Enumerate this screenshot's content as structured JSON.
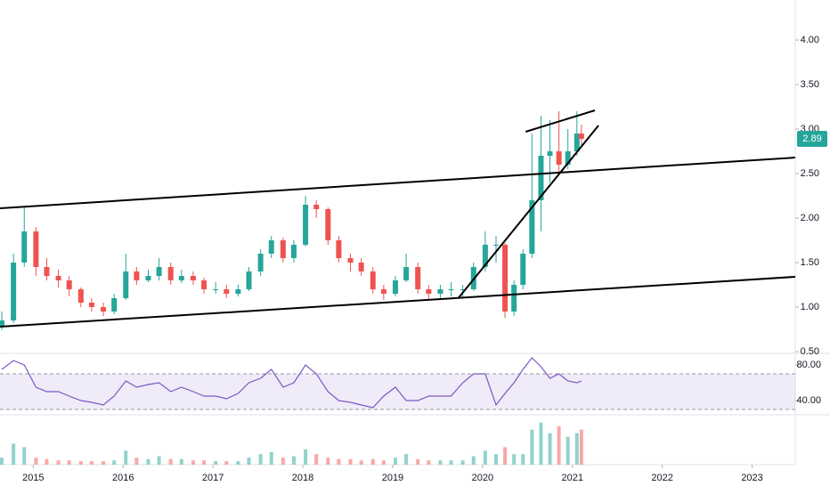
{
  "chart_data": {
    "type": "candlestick",
    "x": [
      2014.65,
      2014.78,
      2014.9,
      2015.03,
      2015.15,
      2015.28,
      2015.4,
      2015.53,
      2015.65,
      2015.78,
      2015.9,
      2016.03,
      2016.15,
      2016.28,
      2016.4,
      2016.53,
      2016.65,
      2016.78,
      2016.9,
      2017.03,
      2017.15,
      2017.28,
      2017.4,
      2017.53,
      2017.65,
      2017.78,
      2017.9,
      2018.03,
      2018.15,
      2018.28,
      2018.4,
      2018.53,
      2018.65,
      2018.78,
      2018.9,
      2019.03,
      2019.15,
      2019.28,
      2019.4,
      2019.53,
      2019.65,
      2019.78,
      2019.9,
      2020.03,
      2020.15,
      2020.25,
      2020.35,
      2020.45,
      2020.55,
      2020.65,
      2020.75,
      2020.85,
      2020.95,
      2021.05,
      2021.1
    ],
    "ohlc": [
      [
        0.78,
        0.95,
        0.74,
        0.85
      ],
      [
        0.85,
        1.6,
        0.82,
        1.5
      ],
      [
        1.5,
        2.12,
        1.45,
        1.85
      ],
      [
        1.85,
        1.9,
        1.35,
        1.45
      ],
      [
        1.45,
        1.55,
        1.3,
        1.35
      ],
      [
        1.35,
        1.42,
        1.22,
        1.3
      ],
      [
        1.3,
        1.35,
        1.12,
        1.2
      ],
      [
        1.2,
        1.22,
        1.0,
        1.05
      ],
      [
        1.05,
        1.1,
        0.95,
        1.0
      ],
      [
        1.0,
        1.05,
        0.9,
        0.95
      ],
      [
        0.95,
        1.15,
        0.92,
        1.1
      ],
      [
        1.1,
        1.6,
        1.08,
        1.4
      ],
      [
        1.4,
        1.45,
        1.25,
        1.3
      ],
      [
        1.3,
        1.42,
        1.28,
        1.35
      ],
      [
        1.35,
        1.55,
        1.3,
        1.45
      ],
      [
        1.45,
        1.5,
        1.25,
        1.3
      ],
      [
        1.3,
        1.42,
        1.27,
        1.35
      ],
      [
        1.35,
        1.4,
        1.25,
        1.3
      ],
      [
        1.3,
        1.33,
        1.15,
        1.2
      ],
      [
        1.2,
        1.28,
        1.15,
        1.2
      ],
      [
        1.2,
        1.25,
        1.1,
        1.15
      ],
      [
        1.15,
        1.25,
        1.12,
        1.2
      ],
      [
        1.2,
        1.45,
        1.18,
        1.4
      ],
      [
        1.4,
        1.65,
        1.35,
        1.6
      ],
      [
        1.6,
        1.8,
        1.55,
        1.75
      ],
      [
        1.75,
        1.78,
        1.5,
        1.55
      ],
      [
        1.55,
        1.75,
        1.5,
        1.7
      ],
      [
        1.7,
        2.25,
        1.68,
        2.15
      ],
      [
        2.15,
        2.2,
        2.0,
        2.1
      ],
      [
        2.1,
        2.12,
        1.7,
        1.75
      ],
      [
        1.75,
        1.8,
        1.5,
        1.55
      ],
      [
        1.55,
        1.6,
        1.4,
        1.5
      ],
      [
        1.5,
        1.55,
        1.35,
        1.4
      ],
      [
        1.4,
        1.45,
        1.15,
        1.2
      ],
      [
        1.2,
        1.25,
        1.08,
        1.15
      ],
      [
        1.15,
        1.35,
        1.12,
        1.3
      ],
      [
        1.3,
        1.6,
        1.28,
        1.45
      ],
      [
        1.45,
        1.5,
        1.15,
        1.2
      ],
      [
        1.2,
        1.25,
        1.08,
        1.15
      ],
      [
        1.15,
        1.25,
        1.1,
        1.2
      ],
      [
        1.2,
        1.28,
        1.12,
        1.2
      ],
      [
        1.2,
        1.25,
        1.1,
        1.2
      ],
      [
        1.2,
        1.5,
        1.18,
        1.45
      ],
      [
        1.45,
        1.85,
        1.4,
        1.7
      ],
      [
        1.7,
        1.8,
        1.5,
        1.7
      ],
      [
        1.7,
        1.72,
        0.88,
        0.95
      ],
      [
        0.95,
        1.3,
        0.9,
        1.25
      ],
      [
        1.25,
        1.65,
        1.2,
        1.6
      ],
      [
        1.6,
        2.95,
        1.55,
        2.2
      ],
      [
        2.2,
        3.15,
        1.85,
        2.7
      ],
      [
        2.7,
        3.1,
        2.4,
        2.75
      ],
      [
        2.75,
        3.2,
        2.5,
        2.6
      ],
      [
        2.6,
        3.0,
        2.55,
        2.75
      ],
      [
        2.75,
        3.2,
        2.7,
        2.95
      ],
      [
        2.95,
        3.05,
        2.8,
        2.89
      ]
    ],
    "up_color": "#26a69a",
    "down_color": "#ef5350",
    "xlim": [
      2014.63,
      2023.48
    ],
    "xticks": [
      2015,
      2016,
      2017,
      2018,
      2019,
      2020,
      2021,
      2022,
      2023
    ],
    "ylim": [
      0.48,
      4.45
    ],
    "yticks": [
      {
        "value": 0.5,
        "label": "0.50"
      },
      {
        "value": 1,
        "label": "1.00"
      },
      {
        "value": 1.5,
        "label": "1.50"
      },
      {
        "value": 2,
        "label": "2.00"
      },
      {
        "value": 2.5,
        "label": "2.50"
      },
      {
        "value": 3,
        "label": "3.00"
      },
      {
        "value": 3.5,
        "label": "3.50"
      },
      {
        "value": 4,
        "label": "4.00"
      }
    ],
    "last_price": {
      "value": 2.89,
      "label": "2.89"
    },
    "trendlines": [
      {
        "x": [
          2014.63,
          2023.48
        ],
        "y": [
          2.11,
          2.68
        ]
      },
      {
        "x": [
          2014.63,
          2023.48
        ],
        "y": [
          0.78,
          1.34
        ]
      },
      {
        "x": [
          2019.73,
          2021.29
        ],
        "y": [
          1.1,
          3.04
        ]
      },
      {
        "x": [
          2020.48,
          2021.25
        ],
        "y": [
          2.97,
          3.21
        ]
      }
    ],
    "rsi": {
      "color": "#7e57c2",
      "band": [
        30,
        70
      ],
      "ylim": [
        24,
        92
      ],
      "yticks": [
        {
          "value": 40,
          "label": "40.00"
        },
        {
          "value": 80,
          "label": "80.00"
        }
      ],
      "values": [
        75,
        85,
        80,
        55,
        50,
        50,
        45,
        40,
        38,
        35,
        45,
        62,
        55,
        58,
        60,
        50,
        55,
        50,
        45,
        45,
        42,
        48,
        60,
        65,
        75,
        55,
        60,
        80,
        70,
        50,
        40,
        38,
        35,
        32,
        45,
        55,
        40,
        40,
        45,
        45,
        45,
        60,
        70,
        70,
        35,
        48,
        60,
        75,
        88,
        78,
        65,
        70,
        62,
        60,
        62
      ]
    },
    "volume": {
      "ylim": [
        0,
        70
      ],
      "values": [
        10,
        30,
        25,
        10,
        8,
        6,
        6,
        5,
        5,
        5,
        6,
        20,
        10,
        8,
        12,
        8,
        8,
        6,
        6,
        5,
        5,
        5,
        10,
        15,
        18,
        10,
        12,
        22,
        15,
        10,
        8,
        8,
        6,
        8,
        6,
        10,
        15,
        8,
        6,
        6,
        6,
        6,
        12,
        20,
        15,
        25,
        15,
        15,
        50,
        60,
        45,
        55,
        40,
        45,
        50
      ]
    }
  }
}
